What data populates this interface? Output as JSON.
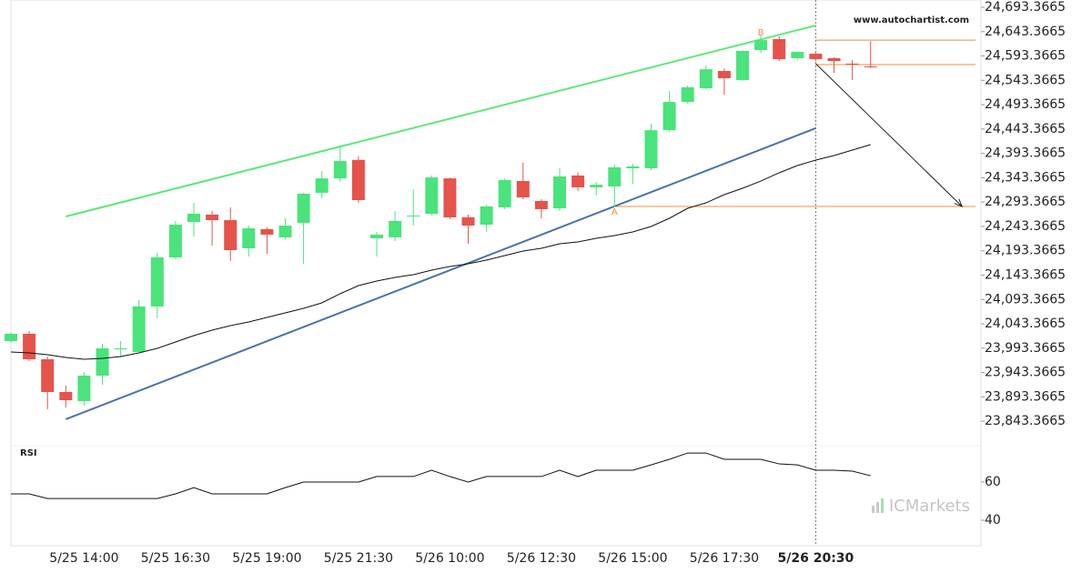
{
  "chart_data": [
    {
      "type": "candlestick",
      "watermark": "www.autochartist.com",
      "categories": [
        null,
        null,
        null,
        null,
        "5/25 14:00",
        null,
        null,
        null,
        null,
        "5/25 16:30",
        null,
        null,
        null,
        null,
        "5/25 19:00",
        null,
        null,
        null,
        null,
        "5/25 21:30",
        null,
        null,
        null,
        null,
        "5/26 10:00",
        null,
        null,
        null,
        null,
        "5/26 12:30",
        null,
        null,
        null,
        null,
        "5/26 15:00",
        null,
        null,
        null,
        null,
        "5/26 17:30",
        null,
        null,
        null,
        null,
        "5/26 20:30",
        null,
        null,
        null
      ],
      "open": [
        24008,
        24022.9,
        23970.6,
        23903.4,
        23884.7,
        23937,
        23991,
        23985.5,
        24079,
        24179.8,
        24252.6,
        24267.6,
        24256.3,
        24198.5,
        24237.7,
        24220.9,
        24250.7,
        24312.4,
        24342,
        24380,
        24219,
        24220.9,
        24263.8,
        24269.4,
        24342,
        24262,
        24247,
        24282.5,
        24336.6,
        24295.6,
        24280.6,
        24347.9,
        24323.6,
        24325.4,
        24362.8,
        24362.8,
        24441,
        24499,
        24527,
        24562.6,
        24544,
        24605.6,
        24628,
        24588.8,
        24598,
        24588.8,
        24577.6,
        24572
      ],
      "high": [
        24026.6,
        24028.5,
        23976,
        23916.5,
        23944.4,
        24002.4,
        24008,
        24092,
        24189,
        24254.5,
        24291.8,
        24275,
        24282.5,
        24245,
        24241.4,
        24260,
        24312.4,
        24357,
        24409.5,
        24387,
        24232,
        24275,
        24319.8,
        24347.9,
        24344,
        24267.6,
        24288,
        24342,
        24374,
        24299.3,
        24362.8,
        24353.5,
        24334.8,
        24370,
        24372,
        24454,
        24521.5,
        24532.8,
        24573.8,
        24568,
        24605.6,
        24637,
        24633.6,
        24601.8,
        24601.8,
        24590.6,
        24585,
        24624
      ],
      "low": [
        24004,
        23966.9,
        23868,
        23871.6,
        23875.4,
        23918.3,
        23974.4,
        23985.5,
        24054.6,
        24176,
        24222.7,
        24204,
        24172.3,
        24181.6,
        24187.3,
        24217,
        24166.7,
        24301,
        24334.8,
        24291.8,
        24181.6,
        24213.4,
        24245,
        24265.7,
        24258,
        24207.8,
        24232,
        24278.8,
        24299.3,
        24260,
        24275,
        24316,
        24306.8,
        24282.5,
        24331,
        24359,
        24437.5,
        24495,
        24525,
        24514,
        24542,
        24600,
        24583,
        24585,
        24583,
        24559,
        24544,
        24568
      ],
      "close": [
        24022.9,
        23970.6,
        23903.4,
        23886.6,
        23937,
        23993,
        23993,
        24079,
        24179.8,
        24247,
        24269.4,
        24256.3,
        24194.7,
        24239.5,
        24226.5,
        24245,
        24310.5,
        24342,
        24377.7,
        24297.4,
        24226.5,
        24254.5,
        24265.7,
        24344,
        24262,
        24245,
        24284.4,
        24338.5,
        24303,
        24278.8,
        24346,
        24323.6,
        24329,
        24364.7,
        24366.5,
        24441,
        24499,
        24529,
        24566,
        24547.7,
        24603.7,
        24626,
        24586.9,
        24601.8,
        24586.9,
        24583,
        24576.7,
        24570.1
      ],
      "up_color": "#4be37c",
      "down_color": "#e5534b",
      "moving_average": {
        "color": "#111111",
        "values": [
          23985.5,
          23983.7,
          23979.9,
          23974.3,
          23970.6,
          23972.5,
          23976.2,
          23983.7,
          23993,
          24006.1,
          24019.2,
          24030.4,
          24039.7,
          24047.2,
          24056.5,
          24065.8,
          24075.2,
          24086.4,
          24105.1,
          24121.9,
          24131.2,
          24138.7,
          24144.3,
          24153.6,
          24161.1,
          24166.7,
          24174.2,
          24183.5,
          24192.8,
          24198.4,
          24207.8,
          24211.5,
          24219,
          24224.6,
          24232.1,
          24243.3,
          24260.1,
          24280.6,
          24291.8,
          24308.6,
          24321.7,
          24336.6,
          24353.5,
          24368.4,
          24379.6,
          24388.9,
          24400.1,
          24411.3
        ]
      },
      "trend_lines": [
        {
          "color": "#5ce87a",
          "from": [
            3,
            24263.8
          ],
          "to": [
            44,
            24656
          ]
        },
        {
          "color": "#4a72a8",
          "from": [
            3,
            23847.4
          ],
          "to": [
            44,
            24445
          ]
        }
      ],
      "levels": [
        {
          "color": "#f08c40",
          "value": 24626,
          "from": 44
        },
        {
          "color": "#f08c40",
          "value": 24575.7,
          "from": 44
        },
        {
          "color": "#f08c40",
          "value": 24284.4,
          "from": 33
        }
      ],
      "points": [
        {
          "label": "A",
          "x": 33,
          "value": 24284.4
        },
        {
          "label": "B",
          "x": 41,
          "value": 24626
        }
      ],
      "arrow": {
        "from": [
          44,
          24577.6
        ],
        "to": [
          52,
          24284.4
        ]
      },
      "current_x": 44,
      "ylim": [
        23793.2,
        24708.3
      ],
      "yticks": [
        {
          "value": 23843.3665,
          "label": "23,843.3665"
        },
        {
          "value": 23893.3665,
          "label": "23,893.3665"
        },
        {
          "value": 23943.3665,
          "label": "23,943.3665"
        },
        {
          "value": 23993.3665,
          "label": "23,993.3665"
        },
        {
          "value": 24043.3665,
          "label": "24,043.3665"
        },
        {
          "value": 24093.3665,
          "label": "24,093.3665"
        },
        {
          "value": 24143.3665,
          "label": "24,143.3665"
        },
        {
          "value": 24193.3665,
          "label": "24,193.3665"
        },
        {
          "value": 24243.3665,
          "label": "24,243.3665"
        },
        {
          "value": 24293.3665,
          "label": "24,293.3665"
        },
        {
          "value": 24343.3665,
          "label": "24,343.3665"
        },
        {
          "value": 24393.3665,
          "label": "24,393.3665"
        },
        {
          "value": 24443.3665,
          "label": "24,443.3665"
        },
        {
          "value": 24493.3665,
          "label": "24,493.3665"
        },
        {
          "value": 24543.3665,
          "label": "24,543.3665"
        },
        {
          "value": 24593.3665,
          "label": "24,593.3665"
        },
        {
          "value": 24643.3665,
          "label": "24,643.3665"
        },
        {
          "value": 24693.3665,
          "label": "24,693.3665"
        }
      ]
    },
    {
      "type": "line",
      "title": "RSI",
      "logo": "ICMarkets",
      "color": "#111111",
      "values": [
        53.8,
        53.8,
        51.4,
        51.4,
        51.4,
        51.4,
        51.4,
        51.4,
        51.4,
        53.8,
        57.1,
        53.8,
        53.8,
        53.8,
        53.8,
        57.1,
        60,
        60,
        60,
        60,
        62.9,
        62.9,
        62.9,
        66.2,
        62.9,
        60,
        62.9,
        62.9,
        62.9,
        62.9,
        66.2,
        62.9,
        66.2,
        66.2,
        66.2,
        69,
        71.9,
        75.2,
        75.2,
        71.9,
        71.9,
        71.9,
        69.5,
        69,
        66.2,
        66.2,
        65.7,
        63.3
      ],
      "ylim": [
        26.67,
        79.05
      ],
      "yticks": [
        40,
        60
      ]
    }
  ]
}
